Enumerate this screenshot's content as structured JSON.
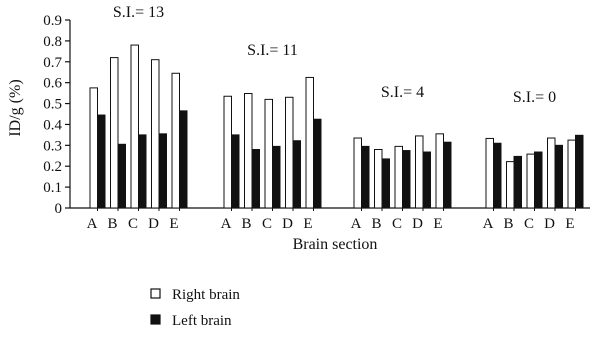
{
  "chart_data": {
    "type": "bar",
    "title": "",
    "xlabel": "Brain section",
    "ylabel": "ID/g (%)",
    "ylim": [
      0,
      0.9
    ],
    "yticks": [
      "0",
      "0.1",
      "0.2",
      "0.3",
      "0.4",
      "0.5",
      "0.6",
      "0.7",
      "0.8",
      "0.9"
    ],
    "legend_position": "bottom-left",
    "colors": {
      "right": "#ffffff",
      "left": "#111111",
      "outline": "#111111"
    },
    "series": [
      {
        "name": "Right brain",
        "fill": "white"
      },
      {
        "name": "Left brain",
        "fill": "black"
      }
    ],
    "groups": [
      {
        "label": "S.I.= 13",
        "categories": [
          "A",
          "B",
          "C",
          "D",
          "E"
        ],
        "right": [
          0.575,
          0.72,
          0.78,
          0.71,
          0.645
        ],
        "left": [
          0.445,
          0.305,
          0.35,
          0.355,
          0.465
        ]
      },
      {
        "label": "S.I.= 11",
        "categories": [
          "A",
          "B",
          "C",
          "D",
          "E"
        ],
        "right": [
          0.535,
          0.548,
          0.52,
          0.53,
          0.625
        ],
        "left": [
          0.35,
          0.28,
          0.295,
          0.322,
          0.425
        ]
      },
      {
        "label": "S.I.= 4",
        "categories": [
          "A",
          "B",
          "C",
          "D",
          "E"
        ],
        "right": [
          0.335,
          0.28,
          0.295,
          0.345,
          0.355
        ],
        "left": [
          0.295,
          0.235,
          0.275,
          0.268,
          0.315
        ]
      },
      {
        "label": "S.I.= 0",
        "categories": [
          "A",
          "B",
          "C",
          "D",
          "E"
        ],
        "right": [
          0.333,
          0.222,
          0.258,
          0.335,
          0.325
        ],
        "left": [
          0.31,
          0.247,
          0.268,
          0.3,
          0.348
        ]
      }
    ]
  }
}
